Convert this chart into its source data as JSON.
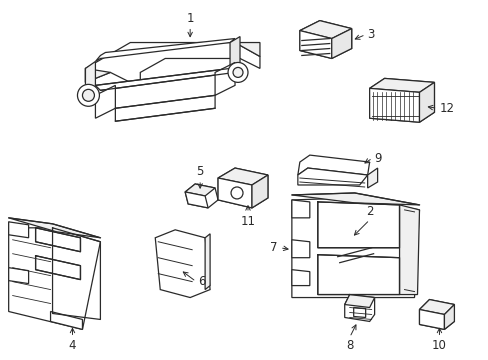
{
  "bg_color": "#ffffff",
  "line_color": "#2a2a2a",
  "line_width": 0.9,
  "fig_width": 4.89,
  "fig_height": 3.6,
  "dpi": 100,
  "font_size": 8.5
}
